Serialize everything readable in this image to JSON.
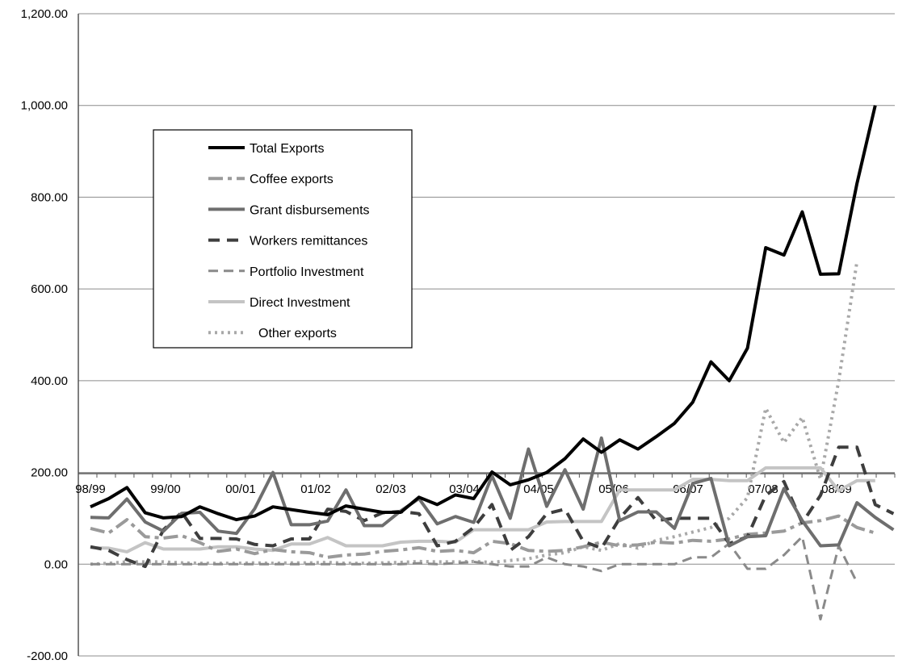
{
  "chart_data": {
    "type": "line",
    "title": "",
    "xlabel": "",
    "ylabel": "",
    "ylim": [
      -200,
      1200
    ],
    "y_ticks": [
      "1,200.00",
      "1,000.00",
      "800.00",
      "600.00",
      "400.00",
      "200.00",
      "0.00",
      "-200.00"
    ],
    "x_tick_labels": [
      "98/99",
      "99/00",
      "00/01",
      "01/02",
      "02/03",
      "03/04",
      "04/05",
      "05/06",
      "06/07",
      "07/08",
      "08/09"
    ],
    "grid": true,
    "legend_position": "upper-left",
    "series": [
      {
        "name": "Total Exports",
        "color": "#000000",
        "dash": "",
        "width": 4,
        "values": [
          125,
          143,
          167,
          112,
          101,
          104,
          125,
          110,
          97,
          105,
          125,
          119,
          113,
          108,
          127,
          120,
          113,
          113,
          146,
          130,
          151,
          143,
          201,
          173,
          184,
          200,
          230,
          273,
          244,
          271,
          251,
          278,
          307,
          353,
          441,
          400,
          471,
          690,
          674,
          768,
          632,
          633,
          830,
          1000
        ]
      },
      {
        "name": "Coffee exports",
        "color": "#9a9a9a",
        "dash": "18 6 5 6",
        "width": 4,
        "values": [
          78,
          68,
          97,
          60,
          57,
          62,
          47,
          28,
          33,
          23,
          32,
          27,
          25,
          15,
          20,
          22,
          28,
          31,
          36,
          28,
          30,
          25,
          50,
          45,
          30,
          28,
          30,
          38,
          48,
          40,
          42,
          48,
          46,
          52,
          50,
          55,
          65,
          68,
          72,
          90,
          95,
          105,
          80,
          68
        ]
      },
      {
        "name": "Grant disbursements",
        "color": "#6e6e6e",
        "dash": "",
        "width": 4,
        "values": [
          102,
          101,
          142,
          92,
          72,
          111,
          113,
          72,
          67,
          121,
          200,
          86,
          86,
          94,
          162,
          84,
          84,
          116,
          143,
          88,
          104,
          91,
          193,
          100,
          251,
          126,
          206,
          120,
          275,
          95,
          114,
          114,
          78,
          176,
          187,
          40,
          60,
          62,
          165,
          95,
          40,
          42,
          134,
          102,
          75
        ]
      },
      {
        "name": "Workers remittances",
        "color": "#3e3e3e",
        "dash": "14 9",
        "width": 4,
        "values": [
          38,
          30,
          10,
          -5,
          75,
          113,
          56,
          56,
          55,
          43,
          40,
          55,
          55,
          120,
          115,
          95,
          112,
          115,
          110,
          40,
          50,
          80,
          130,
          30,
          60,
          110,
          120,
          50,
          35,
          100,
          145,
          95,
          100,
          100,
          100,
          45,
          60,
          150,
          180,
          90,
          150,
          255,
          255,
          130,
          110
        ]
      },
      {
        "name": "Portfolio Investment",
        "color": "#8a8a8a",
        "dash": "12 7",
        "width": 3,
        "values": [
          0,
          0,
          0,
          0,
          0,
          0,
          0,
          0,
          0,
          0,
          0,
          0,
          0,
          0,
          0,
          0,
          0,
          0,
          2,
          0,
          2,
          5,
          0,
          -5,
          -5,
          15,
          0,
          -5,
          -15,
          0,
          0,
          0,
          0,
          15,
          15,
          45,
          -10,
          -10,
          20,
          60,
          -120,
          40,
          -40
        ]
      },
      {
        "name": "Direct Investment",
        "color": "#c4c4c4",
        "dash": "",
        "width": 4,
        "values": [
          36,
          35,
          27,
          47,
          33,
          33,
          33,
          38,
          38,
          33,
          30,
          44,
          44,
          58,
          40,
          40,
          40,
          48,
          50,
          50,
          48,
          75,
          75,
          75,
          75,
          92,
          93,
          93,
          93,
          162,
          162,
          162,
          162,
          185,
          185,
          182,
          182,
          210,
          210,
          210,
          210,
          160,
          182,
          182
        ]
      },
      {
        "name": "Other exports",
        "color": "#a8a8a8",
        "dash": "3 5",
        "width": 4,
        "values": [
          0,
          2,
          5,
          5,
          5,
          3,
          2,
          2,
          2,
          3,
          2,
          3,
          3,
          4,
          2,
          2,
          3,
          4,
          6,
          5,
          5,
          6,
          4,
          8,
          12,
          20,
          25,
          38,
          30,
          45,
          35,
          52,
          60,
          70,
          80,
          100,
          145,
          340,
          265,
          320,
          185,
          400,
          660
        ]
      }
    ]
  }
}
